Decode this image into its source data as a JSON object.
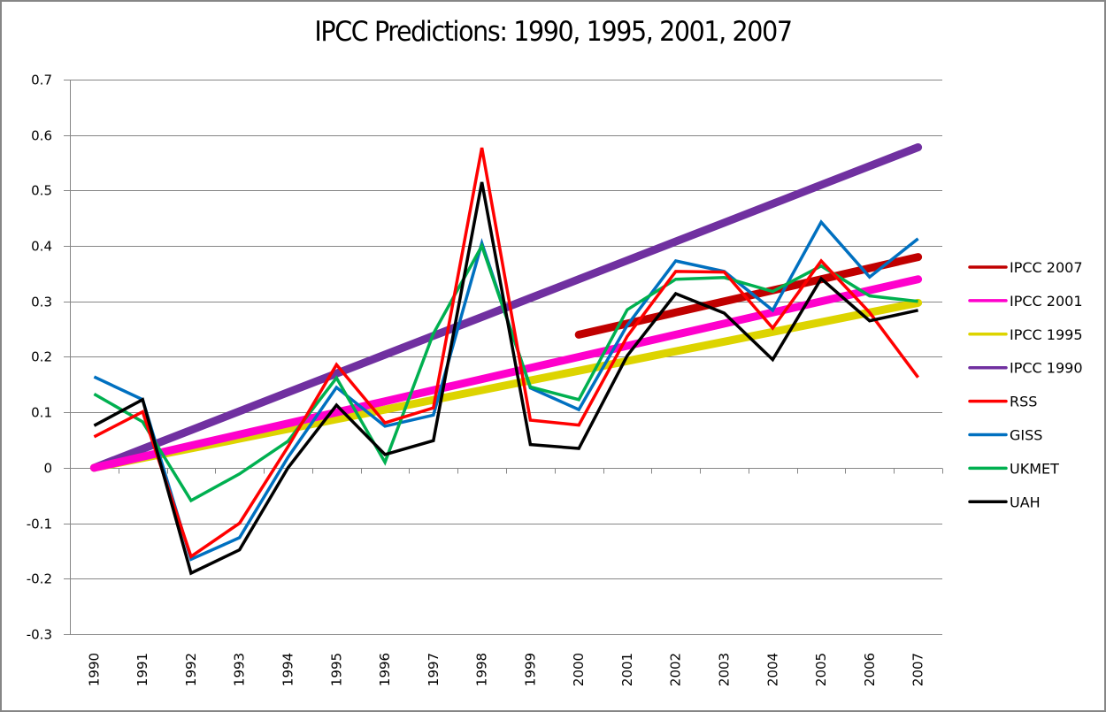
{
  "chart_data": {
    "type": "line",
    "title": "IPCC Predictions: 1990, 1995, 2001, 2007",
    "xlabel": "",
    "ylabel": "",
    "ylim": [
      -0.3,
      0.7
    ],
    "yticks": [
      0.7,
      0.6,
      0.5,
      0.4,
      0.3,
      0.2,
      0.1,
      0,
      -0.1,
      -0.2,
      -0.3
    ],
    "ytick_labels": [
      "0.7",
      "0.6",
      "0.5",
      "0.4",
      "0.3",
      "0.2",
      "0.1",
      "0",
      "-0.1",
      "-0.2",
      "-0.3"
    ],
    "grid": "horizontal",
    "legend_position": "right",
    "categories": [
      "1990",
      "1991",
      "1992",
      "1993",
      "1994",
      "1995",
      "1996",
      "1997",
      "1998",
      "1999",
      "2000",
      "2001",
      "2002",
      "2003",
      "2004",
      "2005",
      "2006",
      "2007"
    ],
    "series": [
      {
        "name": "IPCC 2007",
        "color": "#C00000",
        "weight": "thick",
        "values": [
          null,
          null,
          null,
          null,
          null,
          null,
          null,
          null,
          null,
          null,
          0.24,
          0.26,
          0.28,
          0.3,
          0.32,
          0.34,
          0.36,
          0.38
        ]
      },
      {
        "name": "IPCC 2001",
        "color": "#FF00CC",
        "weight": "thick",
        "values": [
          0,
          0.02,
          0.04,
          0.06,
          0.08,
          0.1,
          0.12,
          0.14,
          0.16,
          0.18,
          0.2,
          0.22,
          0.24,
          0.26,
          0.28,
          0.3,
          0.32,
          0.34
        ]
      },
      {
        "name": "IPCC 1995",
        "color": "#DDD400",
        "weight": "thick",
        "values": [
          0,
          0.0175,
          0.035,
          0.0525,
          0.07,
          0.0875,
          0.105,
          0.1225,
          0.14,
          0.1575,
          0.175,
          0.1925,
          0.21,
          0.2275,
          0.245,
          0.2625,
          0.28,
          0.2975
        ]
      },
      {
        "name": "IPCC 1990",
        "color": "#7030A0",
        "weight": "thick",
        "values": [
          0,
          0.034,
          0.068,
          0.102,
          0.136,
          0.17,
          0.204,
          0.238,
          0.272,
          0.306,
          0.34,
          0.374,
          0.408,
          0.442,
          0.476,
          0.51,
          0.544,
          0.578
        ]
      },
      {
        "name": "RSS",
        "color": "#FF0000",
        "weight": "thin",
        "values": [
          0.056,
          0.101,
          -0.16,
          -0.1,
          0.038,
          0.186,
          0.081,
          0.108,
          0.577,
          0.086,
          0.077,
          0.237,
          0.354,
          0.353,
          0.252,
          0.373,
          0.28,
          0.163
        ]
      },
      {
        "name": "GISS",
        "color": "#0070C0",
        "weight": "thin",
        "values": [
          0.164,
          0.123,
          -0.165,
          -0.126,
          0.019,
          0.145,
          0.075,
          0.095,
          0.405,
          0.144,
          0.105,
          0.257,
          0.373,
          0.354,
          0.284,
          0.443,
          0.344,
          0.413
        ]
      },
      {
        "name": "UKMET",
        "color": "#00B050",
        "weight": "thin",
        "values": [
          0.133,
          0.083,
          -0.059,
          -0.011,
          0.048,
          0.162,
          0.01,
          0.242,
          0.4,
          0.146,
          0.123,
          0.285,
          0.34,
          0.343,
          0.318,
          0.364,
          0.31,
          0.3
        ]
      },
      {
        "name": "UAH",
        "color": "#000000",
        "weight": "thin",
        "values": [
          0.076,
          0.123,
          -0.19,
          -0.148,
          0.0,
          0.113,
          0.024,
          0.049,
          0.515,
          0.042,
          0.035,
          0.202,
          0.314,
          0.279,
          0.195,
          0.341,
          0.265,
          0.284
        ]
      }
    ]
  }
}
